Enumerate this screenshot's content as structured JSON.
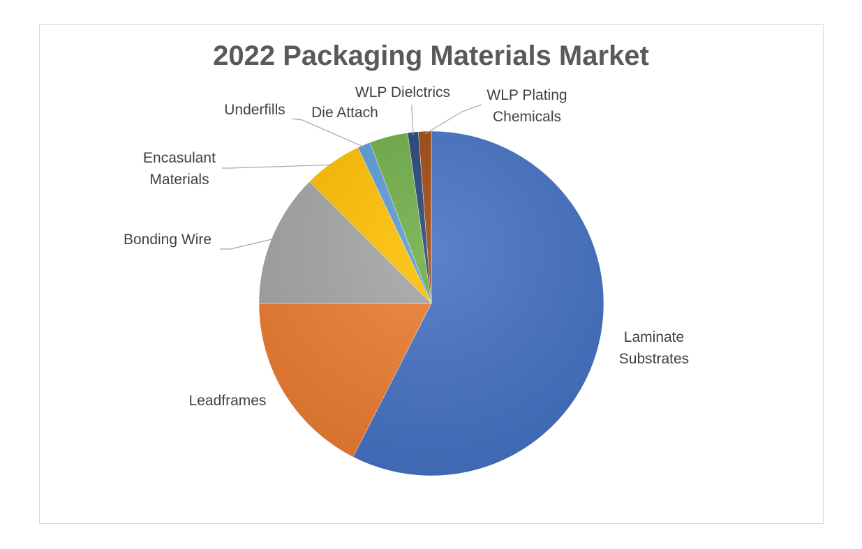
{
  "chart_data": {
    "type": "pie",
    "title": "2022 Packaging Materials Market",
    "legend": "none (data labels with leader lines)",
    "start_angle_deg": 0,
    "direction": "clockwise",
    "slices": [
      {
        "label": "Laminate Substrates",
        "value": 57.5,
        "color": "#4472c4"
      },
      {
        "label": "Leadframes",
        "value": 17.5,
        "color": "#ed7d31"
      },
      {
        "label": "Bonding Wire",
        "value": 12.5,
        "color": "#a5a5a5"
      },
      {
        "label": "Encasulant Materials",
        "value": 5.5,
        "color": "#ffc000"
      },
      {
        "label": "Underfills",
        "value": 1.2,
        "color": "#5b9bd5"
      },
      {
        "label": "Die Attach",
        "value": 3.6,
        "color": "#70ad47"
      },
      {
        "label": "WLP Dielctrics",
        "value": 1.0,
        "color": "#264478"
      },
      {
        "label": "WLP Plating Chemicals",
        "value": 1.2,
        "color": "#9e480e"
      }
    ]
  }
}
